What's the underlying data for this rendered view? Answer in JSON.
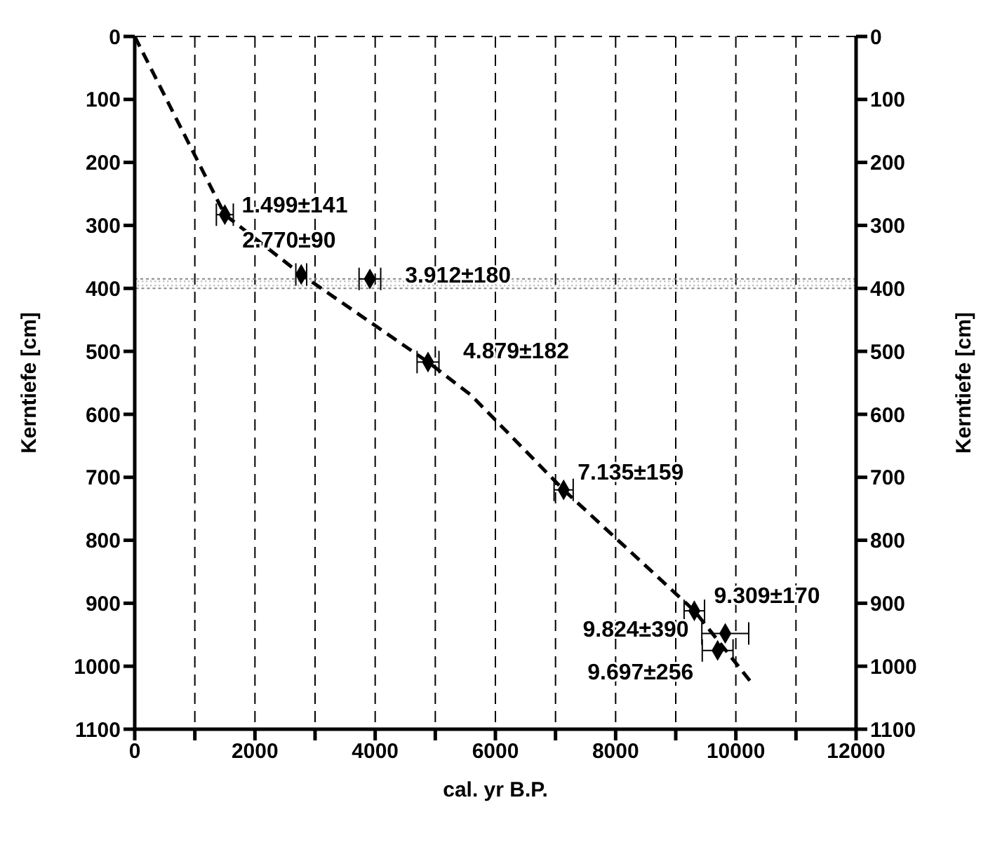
{
  "chart_data": {
    "type": "scatter",
    "xlabel": "cal. yr B.P.",
    "ylabel": "Kerntiefe [cm]",
    "y2label": "Kerntiefe [cm]",
    "xlim": [
      0,
      12000
    ],
    "xticks": [
      0,
      {
        "value": 1000,
        "label": null
      },
      2000,
      {
        "value": 3000,
        "label": null
      },
      4000,
      {
        "value": 5000,
        "label": null
      },
      6000,
      {
        "value": 7000,
        "label": null
      },
      8000,
      {
        "value": 9000,
        "label": null
      },
      10000,
      {
        "value": 11000,
        "label": null
      },
      12000
    ],
    "ylim": [
      1100,
      0
    ],
    "yticks": [
      0,
      100,
      200,
      300,
      400,
      500,
      600,
      700,
      800,
      900,
      1000,
      1100
    ],
    "y2lim": [
      1100,
      0
    ],
    "y2ticks": [
      0,
      100,
      200,
      300,
      400,
      500,
      600,
      700,
      800,
      900,
      1000,
      1100
    ],
    "grid": true,
    "series": [
      {
        "color": "#000000",
        "marker": "diamond",
        "x": [
          1499,
          2770,
          3912,
          4879,
          7135,
          9309,
          9824,
          9697
        ],
        "values": [
          283,
          378,
          385,
          517,
          720,
          912,
          948,
          975
        ],
        "xerrors": [
          141,
          90,
          180,
          182,
          159,
          170,
          390,
          256
        ]
      },
      {
        "type": "line",
        "color": "#000000",
        "marker": "none",
        "line_style": "dashed",
        "x": [
          0,
          1499,
          2770,
          4879,
          5600,
          7135,
          9309,
          10250
        ],
        "values": [
          0,
          283,
          378,
          517,
          570,
          720,
          912,
          1025
        ]
      }
    ],
    "bands": [
      {
        "axis": "y",
        "from": 385,
        "to": 400,
        "color": "#888888"
      }
    ],
    "annotations": [
      {
        "text": "1.499±141",
        "x": 1499,
        "y": 283
      },
      {
        "text": "2.770±90",
        "x": 2770,
        "y": 378
      },
      {
        "text": "3.912±180",
        "x": 3912,
        "y": 385
      },
      {
        "text": "4.879±182",
        "x": 4879,
        "y": 517
      },
      {
        "text": "7.135±159",
        "x": 7135,
        "y": 720
      },
      {
        "text": "9.309±170",
        "x": 9309,
        "y": 912
      },
      {
        "text": "9.824±390",
        "x": 9824,
        "y": 948
      },
      {
        "text": "9.697±256",
        "x": 9697,
        "y": 975
      }
    ]
  }
}
